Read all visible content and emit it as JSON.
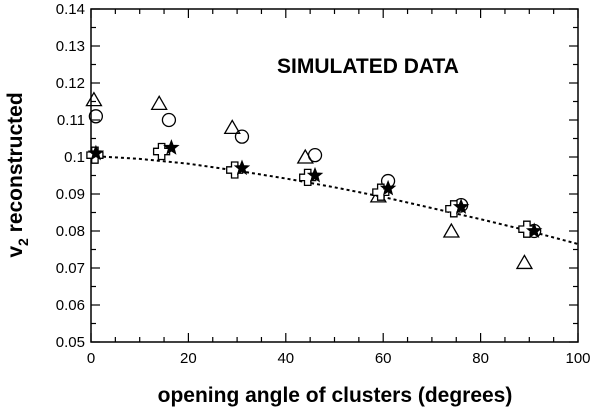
{
  "chart_data": {
    "type": "scatter",
    "title": "",
    "annotation": "SIMULATED DATA",
    "xlabel": "opening angle of clusters (degrees)",
    "ylabel_main": "v",
    "ylabel_sub": "2",
    "ylabel_rest": " reconstructed",
    "xlim": [
      0,
      100
    ],
    "ylim": [
      0.05,
      0.14
    ],
    "x_ticks": [
      0,
      20,
      40,
      60,
      80,
      100
    ],
    "y_ticks": [
      0.05,
      0.06,
      0.07,
      0.08,
      0.09,
      0.1,
      0.11,
      0.12,
      0.13,
      0.14
    ],
    "y_tick_labels": [
      "0.05",
      "0.06",
      "0.07",
      "0.08",
      "0.09",
      "0.1",
      "0.11",
      "0.12",
      "0.13",
      "0.14"
    ],
    "grid": false,
    "legend": "none",
    "series": [
      {
        "marker": "triangle-open",
        "points": [
          [
            0.6,
            0.1155
          ],
          [
            14.0,
            0.1145
          ],
          [
            29.0,
            0.108
          ],
          [
            44.0,
            0.1
          ],
          [
            59.0,
            0.0895
          ],
          [
            74.0,
            0.08
          ],
          [
            89.0,
            0.0715
          ]
        ]
      },
      {
        "marker": "circle-open",
        "points": [
          [
            1.0,
            0.111
          ],
          [
            16.0,
            0.11
          ],
          [
            31.0,
            0.1055
          ],
          [
            46.0,
            0.1005
          ],
          [
            61.0,
            0.0935
          ],
          [
            76.0,
            0.087
          ],
          [
            91.0,
            0.08
          ]
        ]
      },
      {
        "marker": "cross-open",
        "points": [
          [
            0.8,
            0.1005
          ],
          [
            14.5,
            0.1015
          ],
          [
            29.5,
            0.0965
          ],
          [
            44.5,
            0.0945
          ],
          [
            59.5,
            0.0905
          ],
          [
            74.5,
            0.086
          ],
          [
            89.5,
            0.0805
          ]
        ]
      },
      {
        "marker": "star-filled",
        "points": [
          [
            1.0,
            0.101
          ],
          [
            16.5,
            0.1025
          ],
          [
            31.0,
            0.097
          ],
          [
            46.0,
            0.095
          ],
          [
            61.0,
            0.0915
          ],
          [
            76.0,
            0.0865
          ],
          [
            91.0,
            0.08
          ]
        ]
      }
    ],
    "fit_curve": {
      "style": "dotted",
      "x": [
        0,
        10,
        20,
        30,
        40,
        50,
        60,
        70,
        80,
        90,
        100
      ],
      "y": [
        0.1003,
        0.0995,
        0.0982,
        0.0963,
        0.0942,
        0.0918,
        0.0892,
        0.0862,
        0.0832,
        0.08,
        0.0765
      ]
    }
  }
}
